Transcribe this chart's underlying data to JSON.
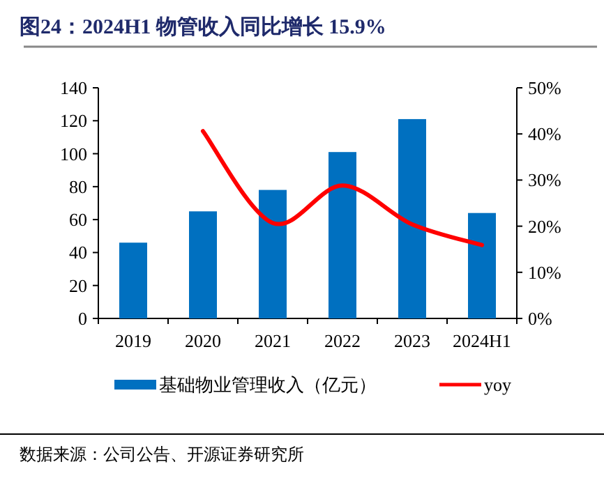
{
  "chart_data": {
    "type": "bar",
    "title": "图24：2024H1 物管收入同比增长 15.9%",
    "categories": [
      "2019",
      "2020",
      "2021",
      "2022",
      "2023",
      "2024H1"
    ],
    "series": [
      {
        "name": "基础物业管理收入（亿元）",
        "color": "#0070c0",
        "values": [
          46,
          65,
          78,
          101,
          121,
          64
        ]
      },
      {
        "name": "yoy",
        "type": "line",
        "axis": "y2",
        "color": "#ff0000",
        "values": [
          null,
          40.6,
          20.7,
          28.8,
          20.4,
          15.9
        ]
      }
    ],
    "ylim": [
      0,
      140
    ],
    "yticks": [
      0,
      20,
      40,
      60,
      80,
      100,
      120,
      140
    ],
    "y2lim": [
      0,
      50
    ],
    "y2ticks": [
      {
        "value": 0,
        "label": "0%"
      },
      {
        "value": 10,
        "label": "10%"
      },
      {
        "value": 20,
        "label": "20%"
      },
      {
        "value": 30,
        "label": "30%"
      },
      {
        "value": 40,
        "label": "40%"
      },
      {
        "value": 50,
        "label": "50%"
      }
    ],
    "legend": "bottom",
    "annotations": [
      "数据来源：公司公告、开源证券研究所"
    ]
  }
}
